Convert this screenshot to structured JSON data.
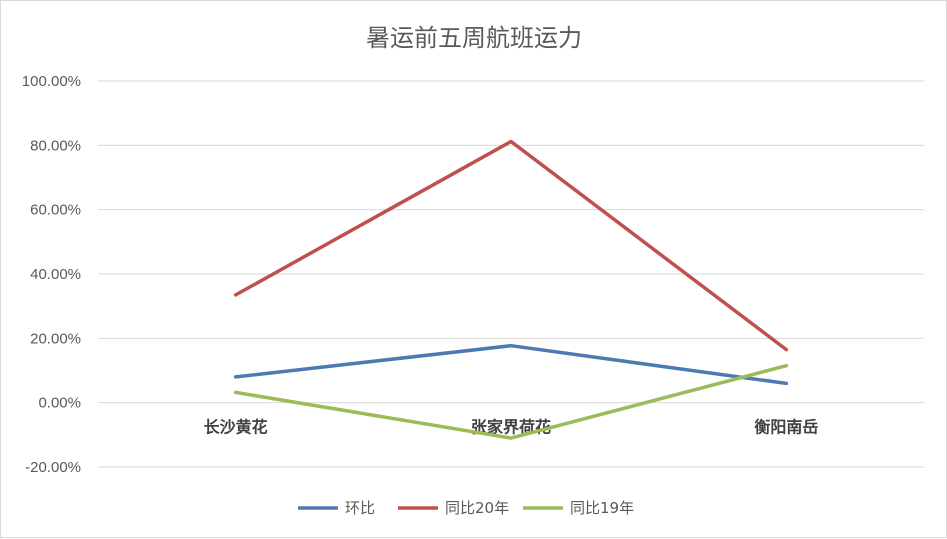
{
  "chart_data": {
    "type": "line",
    "title": "暑运前五周航班运力",
    "categories": [
      "长沙黄花",
      "张家界荷花",
      "衡阳南岳"
    ],
    "series": [
      {
        "name": "环比",
        "color": "#4e7ab3",
        "values": [
          8.0,
          17.7,
          6.0
        ]
      },
      {
        "name": "同比20年",
        "color": "#c0504d",
        "values": [
          33.5,
          81.2,
          16.5
        ]
      },
      {
        "name": "同比19年",
        "color": "#9bbb59",
        "values": [
          3.2,
          -11.0,
          11.5
        ]
      }
    ],
    "yticks": [
      "100.00%",
      "80.00%",
      "60.00%",
      "40.00%",
      "20.00%",
      "0.00%",
      "-20.00%"
    ],
    "ylim": [
      -20,
      100
    ],
    "xlabel": "",
    "ylabel": "",
    "grid": true,
    "legend": "bottom"
  }
}
